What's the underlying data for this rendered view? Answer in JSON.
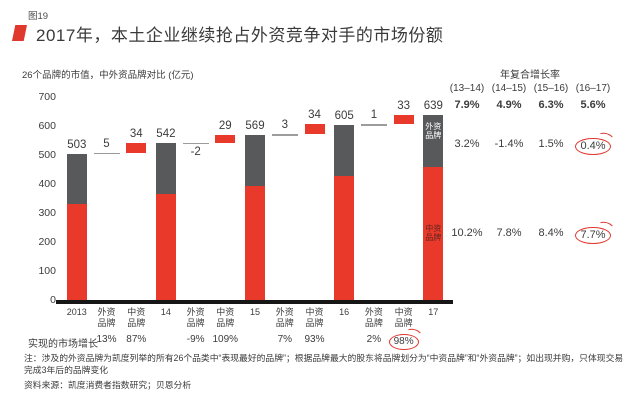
{
  "figure_label": "图19",
  "title": "2017年，本土企业继续抢占外资竞争对手的市场份额",
  "subtitle": "26个品牌的市值，中外资品牌对比 (亿元)",
  "growth_row_label": "实现的市场增长",
  "notes": "注：涉及的外资品牌为凯度列举的所有26个品类中“表现最好的品牌”；根据品牌最大的股东将品牌划分为“中资品牌”和“外资品牌”；如出现并购，只体现交易完成3年后的品牌变化",
  "source": "资料来源：凯度消费者指数研究；贝恩分析",
  "cagr_panel": {
    "title": "年复合增长率",
    "columns": [
      "(13–14)",
      "(14–15)",
      "(15–16)",
      "(16–17)"
    ],
    "rows": [
      {
        "name": "total",
        "bold": true,
        "circled_index": -1,
        "values": [
          "7.9%",
          "4.9%",
          "6.3%",
          "5.6%"
        ]
      },
      {
        "name": "foreign",
        "bold": false,
        "circled_index": 3,
        "values": [
          "3.2%",
          "-1.4%",
          "1.5%",
          "0.4%"
        ]
      },
      {
        "name": "domestic",
        "bold": false,
        "circled_index": 3,
        "values": [
          "10.2%",
          "7.8%",
          "8.4%",
          "7.7%"
        ]
      }
    ]
  },
  "chart_data": {
    "type": "bar",
    "subtype": "waterfall-stacked",
    "unit": "亿元",
    "ylim": [
      0,
      700
    ],
    "yticks": [
      0,
      100,
      200,
      300,
      400,
      500,
      600,
      700
    ],
    "grid": false,
    "colors": {
      "domestic": "#e8392b",
      "foreign": "#58595b",
      "connector": "#9c9c9c",
      "inside_foreign": "#ffffff",
      "inside_domestic": "#63271f"
    },
    "series": [
      {
        "name": "中资品牌",
        "values": [
          331,
          365,
          394,
          427,
          460
        ]
      },
      {
        "name": "外资品牌",
        "values": [
          172,
          177,
          175,
          178,
          179
        ]
      }
    ],
    "totals_by_year": {
      "2013": 503,
      "14": 542,
      "15": 569,
      "16": 605,
      "17": 639
    },
    "columns": [
      {
        "kind": "total",
        "x_label": "2013",
        "label": "503",
        "total": 503,
        "domestic": 331,
        "foreign": 172
      },
      {
        "kind": "change",
        "x_label": "外资\n品牌",
        "label": "5",
        "value": 5,
        "base": 503,
        "growth": "13%"
      },
      {
        "kind": "change",
        "x_label": "中资\n品牌",
        "label": "34",
        "value": 34,
        "base": 508,
        "growth": "87%"
      },
      {
        "kind": "total",
        "x_label": "14",
        "label": "542",
        "total": 542,
        "domestic": 365,
        "foreign": 177
      },
      {
        "kind": "change",
        "x_label": "外资\n品牌",
        "label": "-2",
        "value": -2,
        "base": 542,
        "growth": "-9%"
      },
      {
        "kind": "change",
        "x_label": "中资\n品牌",
        "label": "29",
        "value": 29,
        "base": 540,
        "growth": "109%"
      },
      {
        "kind": "total",
        "x_label": "15",
        "label": "569",
        "total": 569,
        "domestic": 394,
        "foreign": 175
      },
      {
        "kind": "change",
        "x_label": "外资\n品牌",
        "label": "3",
        "value": 3,
        "base": 569,
        "growth": "7%"
      },
      {
        "kind": "change",
        "x_label": "中资\n品牌",
        "label": "34",
        "value": 34,
        "base": 572,
        "growth": "93%"
      },
      {
        "kind": "total",
        "x_label": "16",
        "label": "605",
        "total": 605,
        "domestic": 427,
        "foreign": 178
      },
      {
        "kind": "change",
        "x_label": "外资\n品牌",
        "label": "1",
        "value": 1,
        "base": 605,
        "growth": "2%"
      },
      {
        "kind": "change",
        "x_label": "中资\n品牌",
        "label": "33",
        "value": 33,
        "base": 606,
        "growth": "98%",
        "growth_circled": true
      },
      {
        "kind": "total",
        "x_label": "17",
        "label": "639",
        "total": 639,
        "domestic": 460,
        "foreign": 179,
        "inside_labels": {
          "foreign": "外资\n品牌",
          "domestic": "中资\n品牌"
        }
      }
    ]
  }
}
